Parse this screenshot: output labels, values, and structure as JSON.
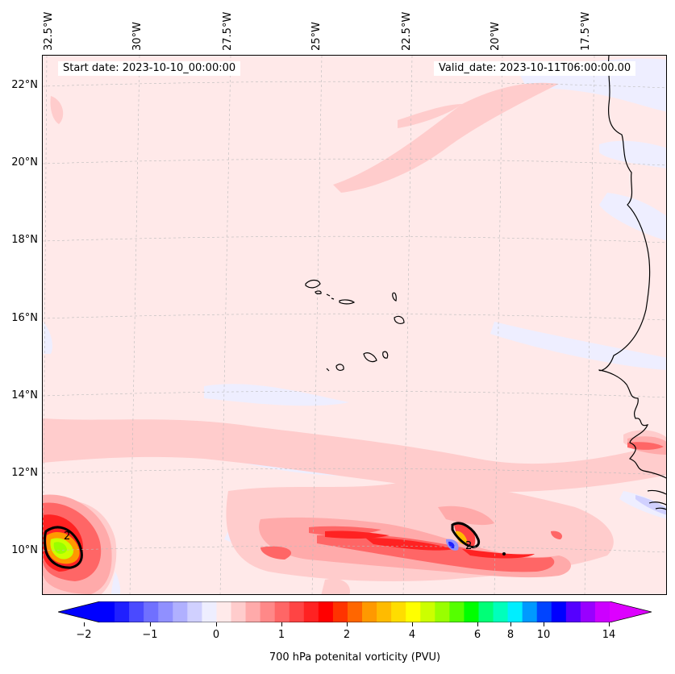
{
  "header": {
    "start_date": "Start date: 2023-10-10_00:00:00",
    "valid_date": "Valid_date: 2023-10-11T06:00:00.00"
  },
  "axes": {
    "longitudes": [
      "32.5°W",
      "30°W",
      "27.5°W",
      "25°W",
      "22.5°W",
      "20°W",
      "17.5°W"
    ],
    "latitudes": [
      "22°N",
      "20°N",
      "18°N",
      "16°N",
      "14°N",
      "12°N",
      "10°N"
    ]
  },
  "map": {
    "contour_labels": [
      "2",
      "2"
    ],
    "regions": [
      "Cape Verde Islands",
      "West African coast"
    ]
  },
  "colorbar": {
    "title": "700 hPa potenital vorticity (PVU)",
    "ticks": [
      "−2",
      "−1",
      "0",
      "1",
      "2",
      "4",
      "6",
      "8",
      "10",
      "14"
    ],
    "colors": [
      "#0000ff",
      "#2020ff",
      "#4a4aff",
      "#7070ff",
      "#9090ff",
      "#b0b0ff",
      "#d0d0ff",
      "#eeeeff",
      "#ffeaea",
      "#ffcccc",
      "#ffaaaa",
      "#ff8888",
      "#ff6666",
      "#ff4444",
      "#ff2222",
      "#ff0000",
      "#ff3300",
      "#ff6600",
      "#ff9900",
      "#ffbb00",
      "#ffdd00",
      "#ffff00",
      "#ccff00",
      "#99ff00",
      "#55ff00",
      "#00ff00",
      "#00ff77",
      "#00ffbb",
      "#00eeff",
      "#0099ff",
      "#0044ff",
      "#0000ff",
      "#5500ff",
      "#9900ff",
      "#cc00ff"
    ],
    "under_color": "#0000ff",
    "over_color": "#dd00ff"
  }
}
